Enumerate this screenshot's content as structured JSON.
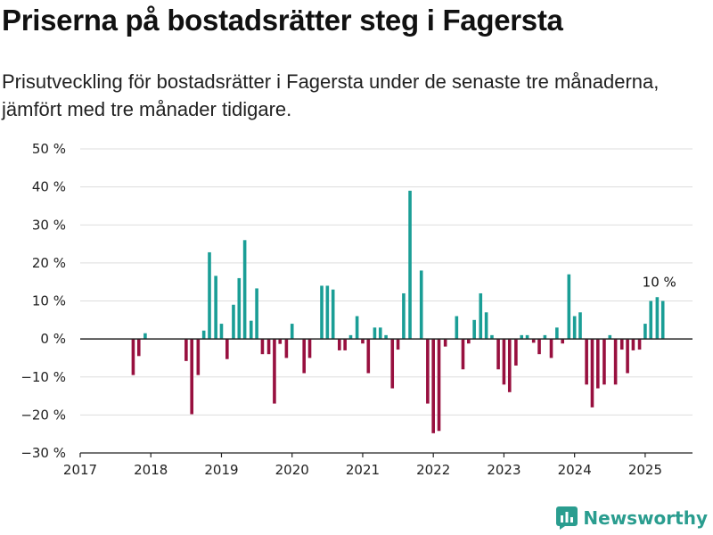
{
  "header": {
    "title": "Priserna på bostadsrätter steg i Fagersta",
    "subtitle": "Prisutveckling för bostadsrätter i Fagersta under de senaste tre månaderna, jämfört med tre månader tidigare."
  },
  "brand": {
    "name": "Newsworthy",
    "icon": "newsworthy-logo-icon"
  },
  "colors": {
    "positive": "#1a9e96",
    "negative": "#98103f",
    "grid": "#dddddd",
    "axis": "#222222"
  },
  "chart_data": {
    "type": "bar",
    "title": "",
    "xlabel": "",
    "ylabel": "",
    "ylim": [
      -30,
      50
    ],
    "xlim": [
      2017,
      2025.67
    ],
    "y_ticks": [
      -30,
      -20,
      -10,
      0,
      10,
      20,
      30,
      40,
      50
    ],
    "y_tick_labels": [
      "−30 %",
      "−20 %",
      "−10 %",
      "0 %",
      "10 %",
      "20 %",
      "30 %",
      "40 %",
      "50 %"
    ],
    "x_ticks": [
      2017,
      2018,
      2019,
      2020,
      2021,
      2022,
      2023,
      2024,
      2025
    ],
    "x_tick_labels": [
      "2017",
      "2018",
      "2019",
      "2020",
      "2021",
      "2022",
      "2023",
      "2024",
      "2025"
    ],
    "grid": true,
    "annotation": {
      "text": "10 %",
      "x": 2025.25,
      "y": 10
    },
    "series": [
      {
        "x": [
          2017.75,
          2017.83,
          2017.92,
          2018.5,
          2018.58,
          2018.67,
          2018.75,
          2018.83,
          2018.92,
          2019.0,
          2019.08,
          2019.17,
          2019.25,
          2019.33,
          2019.42,
          2019.5,
          2019.58,
          2019.67,
          2019.75,
          2019.83,
          2019.92,
          2020.0,
          2020.17,
          2020.25,
          2020.42,
          2020.5,
          2020.58,
          2020.67,
          2020.75,
          2020.83,
          2020.92,
          2021.0,
          2021.08,
          2021.17,
          2021.25,
          2021.33,
          2021.42,
          2021.5,
          2021.58,
          2021.67,
          2021.83,
          2021.92,
          2022.0,
          2022.08,
          2022.17,
          2022.33,
          2022.42,
          2022.5,
          2022.58,
          2022.67,
          2022.75,
          2022.83,
          2022.92,
          2023.0,
          2023.08,
          2023.17,
          2023.25,
          2023.33,
          2023.42,
          2023.5,
          2023.58,
          2023.67,
          2023.75,
          2023.83,
          2023.92,
          2024.0,
          2024.08,
          2024.17,
          2024.25,
          2024.33,
          2024.42,
          2024.5,
          2024.58,
          2024.67,
          2024.75,
          2024.83,
          2024.92,
          2025.0,
          2025.08,
          2025.17,
          2025.25
        ],
        "values": [
          -9.5,
          -4.5,
          1.5,
          -5.8,
          -19.8,
          -9.5,
          2.2,
          22.8,
          16.6,
          4.0,
          -5.3,
          9.0,
          16.0,
          26.0,
          4.8,
          13.3,
          -4.0,
          -4.0,
          -17.0,
          -1.3,
          -5.0,
          4.0,
          -9.0,
          -5.0,
          14.0,
          14.0,
          13.0,
          -3.0,
          -3.0,
          1.0,
          6.0,
          -1.2,
          -9.0,
          3.0,
          3.0,
          1.0,
          -13.0,
          -2.8,
          12.0,
          39.0,
          18.0,
          -17.0,
          -24.8,
          -24.2,
          -2.0,
          6.0,
          -8.0,
          -1.2,
          5.0,
          12.0,
          7.0,
          1.0,
          -8.0,
          -12.0,
          -14.0,
          -7.0,
          1.0,
          1.0,
          -1.0,
          -4.0,
          1.0,
          -5.0,
          3.0,
          -1.2,
          17.0,
          6.0,
          7.0,
          -12.0,
          -18.0,
          -13.0,
          -12.0,
          1.0,
          -12.0,
          -2.8,
          -9.0,
          -3.0,
          -2.8,
          4.0,
          10.0,
          11.0,
          10.0
        ]
      }
    ]
  }
}
